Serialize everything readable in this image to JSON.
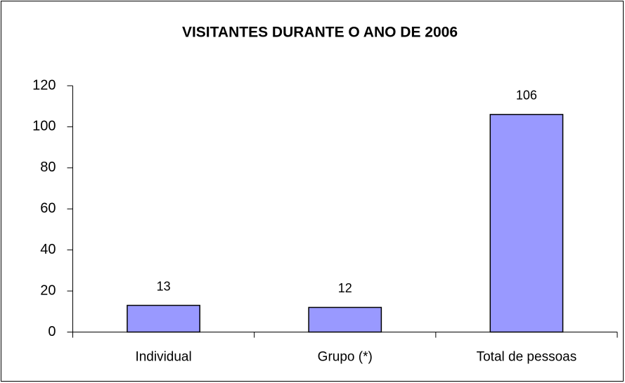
{
  "chart_data": {
    "type": "bar",
    "title": "VISITANTES DURANTE O ANO DE 2006",
    "categories": [
      "Individual",
      "Grupo (*)",
      "Total de pessoas"
    ],
    "values": [
      13,
      12,
      106
    ],
    "color": "#9999ff",
    "ylim": [
      0,
      120
    ],
    "yticks": [
      0,
      20,
      40,
      60,
      80,
      100,
      120
    ],
    "grid": false
  }
}
